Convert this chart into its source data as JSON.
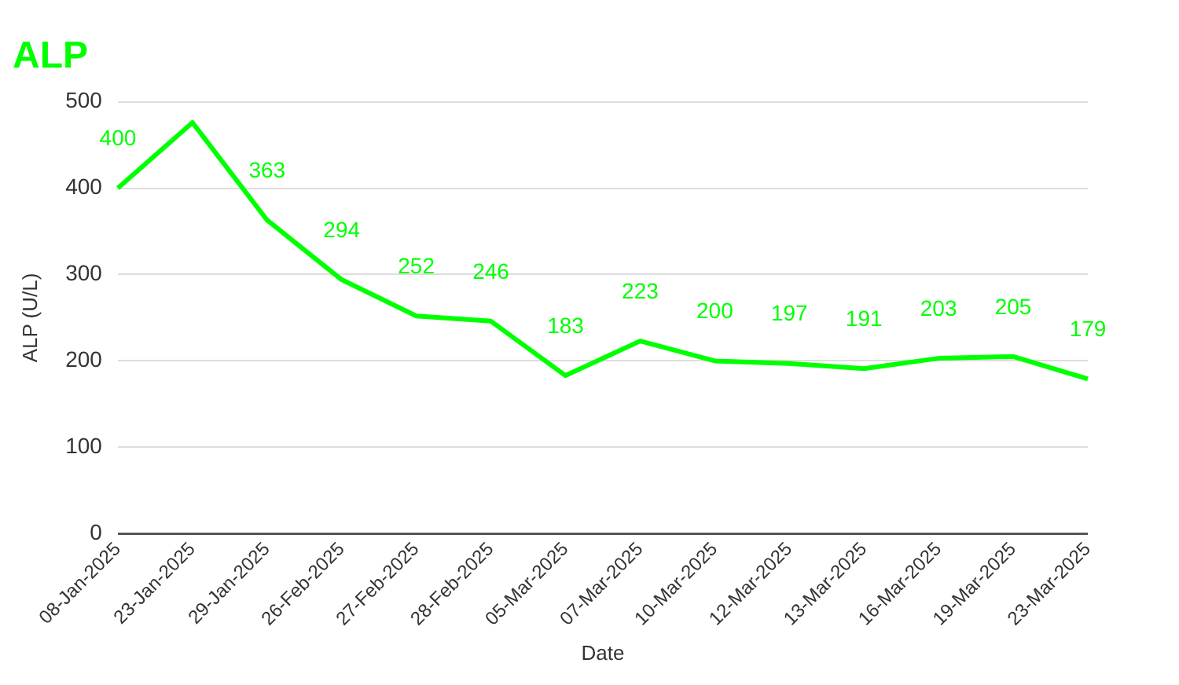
{
  "chart_data": {
    "type": "line",
    "title": "ALP",
    "xlabel": "Date",
    "ylabel": "ALP (U/L)",
    "categories": [
      "08-Jan-2025",
      "23-Jan-2025",
      "29-Jan-2025",
      "26-Feb-2025",
      "27-Feb-2025",
      "28-Feb-2025",
      "05-Mar-2025",
      "07-Mar-2025",
      "10-Mar-2025",
      "12-Mar-2025",
      "13-Mar-2025",
      "16-Mar-2025",
      "19-Mar-2025",
      "23-Mar-2025"
    ],
    "series": [
      {
        "color": "#00ff00",
        "values": [
          400,
          476,
          363,
          294,
          252,
          246,
          183,
          223,
          200,
          197,
          191,
          203,
          205,
          179
        ],
        "value_labels": [
          "400",
          null,
          "363",
          "294",
          "252",
          "246",
          "183",
          "223",
          "200",
          "197",
          "191",
          "203",
          "205",
          "179"
        ]
      }
    ],
    "ylim": [
      0,
      500
    ],
    "yticks": [
      0,
      100,
      200,
      300,
      400,
      500
    ],
    "grid": "y",
    "legend": false,
    "marker": "none",
    "line_style": "solid"
  }
}
